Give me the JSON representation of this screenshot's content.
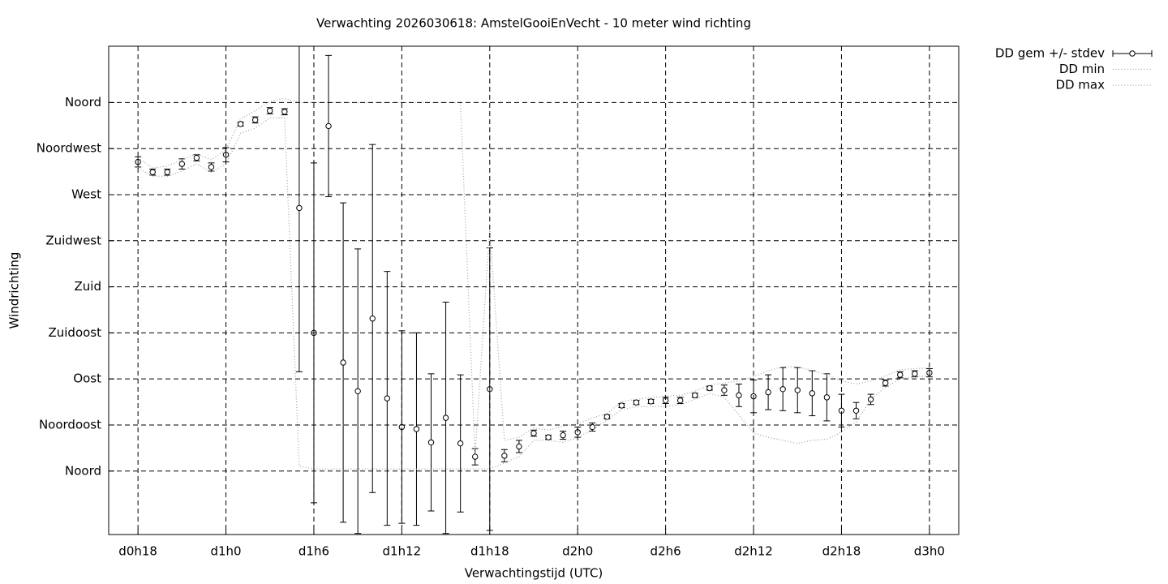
{
  "chart_data": {
    "type": "errorbar",
    "title": "Verwachting 2026030618: AmstelGooiEnVecht - 10 meter wind richting",
    "xlabel": "Verwachtingstijd (UTC)",
    "ylabel": "Windrichting",
    "x": [
      18,
      19,
      20,
      21,
      22,
      23,
      24,
      25,
      26,
      27,
      28,
      29,
      30,
      31,
      32,
      33,
      34,
      35,
      36,
      37,
      38,
      39,
      40,
      41,
      42,
      43,
      44,
      45,
      46,
      47,
      48,
      49,
      50,
      51,
      52,
      53,
      54,
      55,
      56,
      57,
      58,
      59,
      60,
      61,
      62,
      63,
      64,
      65,
      66,
      67,
      68,
      69,
      70,
      71,
      72
    ],
    "series": [
      {
        "name": "DD gem +/- stdev",
        "color": "#000000",
        "values": [
          302,
          292,
          292,
          300,
          306,
          297,
          309,
          339,
          343,
          352,
          351,
          257,
          135,
          337,
          106,
          78,
          149,
          71,
          43,
          41,
          28,
          52,
          27,
          14,
          80,
          15,
          24,
          37,
          33,
          35,
          38,
          43,
          53,
          64,
          67,
          68,
          69,
          69,
          74,
          81,
          79,
          74,
          73,
          77,
          80,
          79,
          76,
          72,
          59,
          59,
          70,
          86,
          94,
          95,
          96
        ],
        "errors": [
          5,
          3,
          3,
          5,
          3,
          4,
          7,
          2,
          3,
          3,
          3,
          160,
          166,
          69,
          156,
          139,
          170,
          124,
          94,
          94,
          67,
          113,
          67,
          8,
          138,
          6,
          6,
          3,
          2,
          4,
          5,
          4,
          2,
          2,
          2,
          2,
          3,
          3,
          2,
          2,
          5,
          11,
          16,
          17,
          21,
          22,
          22,
          23,
          16,
          8,
          5,
          3,
          3,
          3,
          4
        ]
      },
      {
        "name": "DD min",
        "color": "#a0a0a0",
        "values": [
          296,
          288,
          288,
          293,
          300,
          292,
          300,
          330,
          335,
          345,
          345,
          5,
          2,
          2,
          2,
          2,
          2,
          2,
          2,
          2,
          2,
          2,
          2,
          2,
          2,
          8,
          14,
          30,
          30,
          28,
          33,
          40,
          50,
          60,
          63,
          63,
          63,
          65,
          70,
          76,
          72,
          55,
          37,
          33,
          30,
          27,
          30,
          31,
          38,
          48,
          70,
          82,
          90,
          92,
          93
        ]
      },
      {
        "name": "DD max",
        "color": "#a0a0a0",
        "values": [
          306,
          296,
          298,
          304,
          310,
          304,
          314,
          344,
          352,
          361,
          364,
          360,
          360,
          360,
          360,
          360,
          360,
          360,
          360,
          360,
          360,
          360,
          360,
          16,
          237,
          30,
          33,
          42,
          40,
          44,
          46,
          52,
          56,
          68,
          70,
          72,
          73,
          74,
          78,
          84,
          86,
          88,
          92,
          98,
          102,
          102,
          98,
          94,
          88,
          85,
          88,
          93,
          99,
          100,
          101
        ]
      }
    ],
    "xlim": [
      16,
      74
    ],
    "ylim": [
      -62,
      415
    ],
    "xticks": [
      {
        "value": 18,
        "label": "d0h18"
      },
      {
        "value": 24,
        "label": "d1h0"
      },
      {
        "value": 30,
        "label": "d1h6"
      },
      {
        "value": 36,
        "label": "d1h12"
      },
      {
        "value": 42,
        "label": "d1h18"
      },
      {
        "value": 48,
        "label": "d2h0"
      },
      {
        "value": 54,
        "label": "d2h6"
      },
      {
        "value": 60,
        "label": "d2h12"
      },
      {
        "value": 66,
        "label": "d2h18"
      },
      {
        "value": 72,
        "label": "d3h0"
      }
    ],
    "yticks": [
      {
        "value": 0,
        "label": "Noord"
      },
      {
        "value": 45,
        "label": "Noordoost"
      },
      {
        "value": 90,
        "label": "Oost"
      },
      {
        "value": 135,
        "label": "Zuidoost"
      },
      {
        "value": 180,
        "label": "Zuid"
      },
      {
        "value": 225,
        "label": "Zuidwest"
      },
      {
        "value": 270,
        "label": "West"
      },
      {
        "value": 315,
        "label": "Noordwest"
      },
      {
        "value": 360,
        "label": "Noord"
      }
    ],
    "grid": true,
    "legend": "top-right"
  }
}
